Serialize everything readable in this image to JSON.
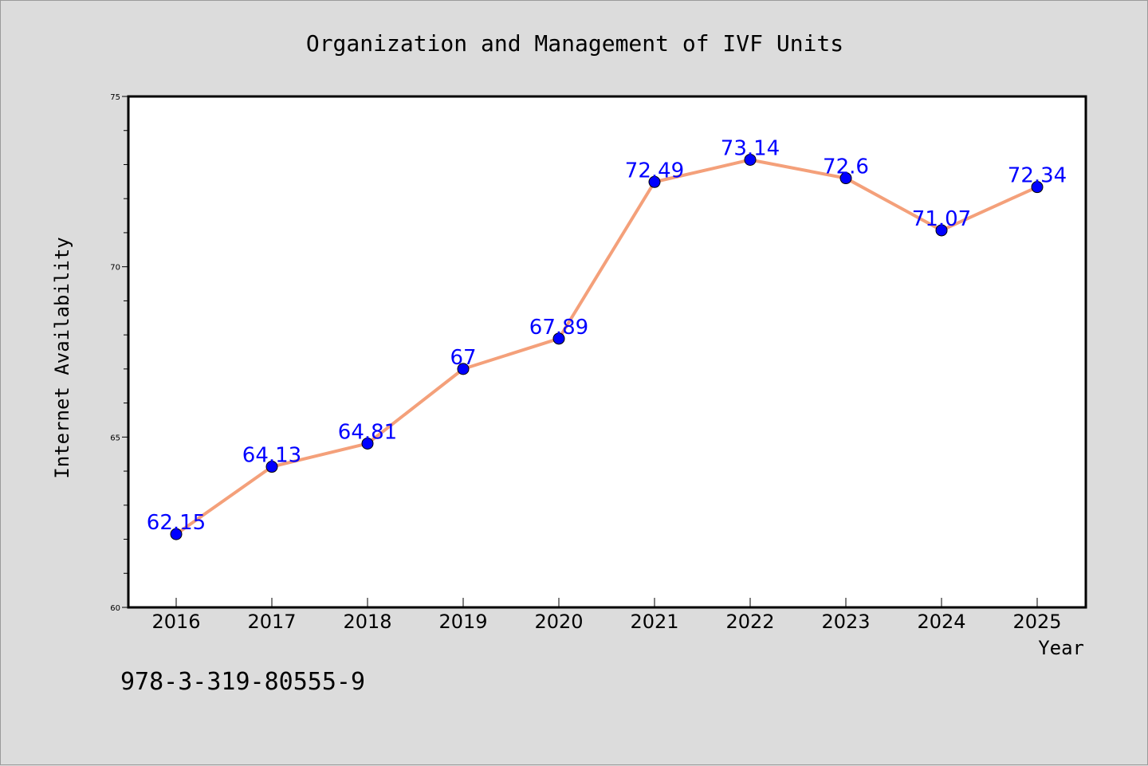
{
  "chart_data": {
    "type": "line",
    "title": "Organization and Management of IVF Units",
    "xlabel": "Year",
    "ylabel": "Internet Availability",
    "categories": [
      "2016",
      "2017",
      "2018",
      "2019",
      "2020",
      "2021",
      "2022",
      "2023",
      "2024",
      "2025"
    ],
    "series": [
      {
        "values": [
          62.15,
          64.13,
          64.81,
          67,
          67.89,
          72.49,
          73.14,
          72.6,
          71.07,
          72.34
        ],
        "data_labels": [
          "62.15",
          "64.13",
          "64.81",
          "67",
          "67.89",
          "72.49",
          "73.14",
          "72.6",
          "71.07",
          "72.34"
        ]
      }
    ],
    "ylim": [
      60,
      75
    ],
    "yticks": [
      "60",
      "65",
      "70",
      "75"
    ],
    "grid": false,
    "legend": "none",
    "colors": {
      "line": "#f4a07a",
      "marker": "#0000ff",
      "data_label": "#0000ff",
      "background": "#dcdcdc",
      "plot_background": "#ffffff"
    }
  },
  "footer": {
    "isbn": "978-3-319-80555-9"
  }
}
